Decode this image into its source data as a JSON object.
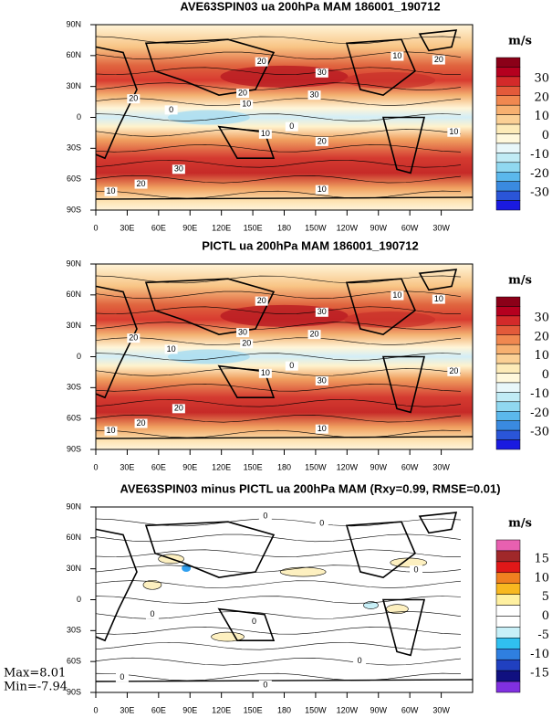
{
  "panels": [
    {
      "title": "AVE63SPIN03 ua 200hPa MAM 186001_190712",
      "unit": "m/s",
      "colorbar_labels": [
        "30",
        "20",
        "10",
        "0",
        "-10",
        "-20",
        "-30"
      ],
      "contour_labels": [
        "20",
        "10",
        "20",
        "30",
        "20",
        "30",
        "20",
        "10",
        "0",
        "10",
        "0",
        "10",
        "20",
        "30",
        "20",
        "10",
        "10"
      ]
    },
    {
      "title": "PICTL ua 200hPa MAM 186001_190712",
      "unit": "m/s",
      "colorbar_labels": [
        "30",
        "20",
        "10",
        "0",
        "-10",
        "-20",
        "-30"
      ],
      "contour_labels": [
        "20",
        "10",
        "20",
        "20",
        "30",
        "30",
        "10",
        "20",
        "0",
        "10",
        "10",
        "20",
        "30",
        "20",
        "20",
        "10",
        "10"
      ]
    },
    {
      "title": "AVE63SPIN03 minus PICTL ua 200hPa MAM (Rxy=0.99, RMSE=0.01)",
      "unit": "m/s",
      "colorbar_labels": [
        "15",
        "10",
        "5",
        "0",
        "-5",
        "-10",
        "-15"
      ],
      "contour_labels": [
        "0",
        "0",
        "0",
        "0",
        "0",
        "0",
        "0",
        "0"
      ]
    }
  ],
  "lat_labels": [
    "90N",
    "60N",
    "30N",
    "0",
    "30S",
    "60S",
    "90S"
  ],
  "lon_labels": [
    "0",
    "30E",
    "60E",
    "90E",
    "120E",
    "150E",
    "180",
    "150W",
    "120W",
    "90W",
    "60W",
    "30W"
  ],
  "stats": {
    "max": "Max=8.01",
    "min": "Min=-7.94"
  }
}
